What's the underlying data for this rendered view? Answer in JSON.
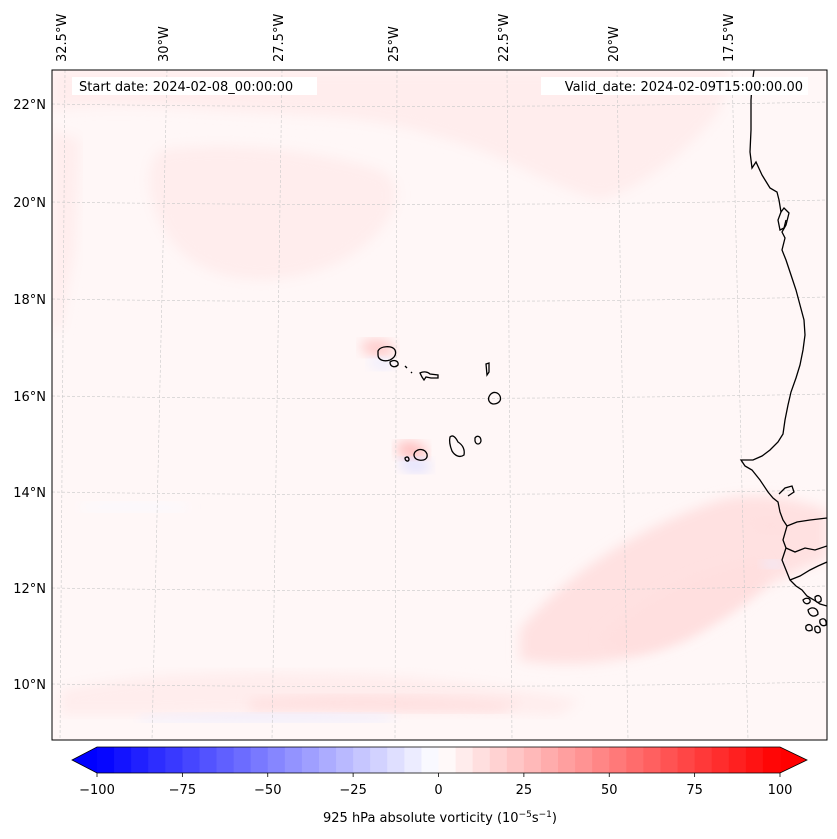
{
  "chart_data": {
    "type": "heatmap",
    "title": "",
    "variable_label": "925 hPa absolute vorticity (10^-5 s^-1)",
    "colorbar": {
      "label_main": "925 hPa absolute vorticity (10",
      "label_exp1": "−5",
      "label_mid": "s",
      "label_exp2": "−1",
      "label_end": ")",
      "vmin": -100,
      "vmax": 100,
      "levels_step": 5,
      "extend": "both",
      "colormap": "bwr",
      "ticks": [
        -100,
        -75,
        -50,
        -25,
        0,
        25,
        50,
        75,
        100
      ],
      "tick_labels": [
        "−100",
        "−75",
        "−50",
        "−25",
        "0",
        "25",
        "50",
        "75",
        "100"
      ]
    },
    "annotations": {
      "start_date": "Start date: 2024-02-08_00:00:00",
      "valid_date": "Valid_date: 2024-02-09T15:00:00.00"
    },
    "lon_ticks": [
      -32.5,
      -30,
      -27.5,
      -25,
      -22.5,
      -20,
      -17.5
    ],
    "lon_tick_labels": [
      "32.5°W",
      "30°W",
      "27.5°W",
      "25°W",
      "22.5°W",
      "20°W",
      "17.5°W"
    ],
    "lat_ticks": [
      22,
      20,
      18,
      16,
      14,
      12,
      10
    ],
    "lat_tick_labels": [
      "22°N",
      "20°N",
      "18°N",
      "16°N",
      "14°N",
      "12°N",
      "10°N"
    ],
    "extent": {
      "lon": [
        -33,
        -15.7
      ],
      "lat": [
        8.9,
        22.8
      ]
    },
    "grid": true,
    "features": [
      "Cape Verde islands coastlines",
      "West African coastline (Mauritania, Senegal, Gambia, Guinea-Bissau)"
    ],
    "field_notes": {
      "background": "weakly positive (~0 to 5)",
      "positive_bands": [
        {
          "region": "band from ~12°N 20°W to ~10°N 26°W",
          "approx_value": 10
        },
        {
          "region": "zonal band near 9.5°N, 30–22°W",
          "approx_value": 10
        },
        {
          "region": "lee of Santo Antão & Fogo islands",
          "approx_value": 20
        }
      ],
      "negative_bands": [
        {
          "region": "zonal strip near 9.3°N, 32–26°W",
          "approx_value": -10
        },
        {
          "region": "south of Fogo island",
          "approx_value": -15
        }
      ]
    }
  }
}
